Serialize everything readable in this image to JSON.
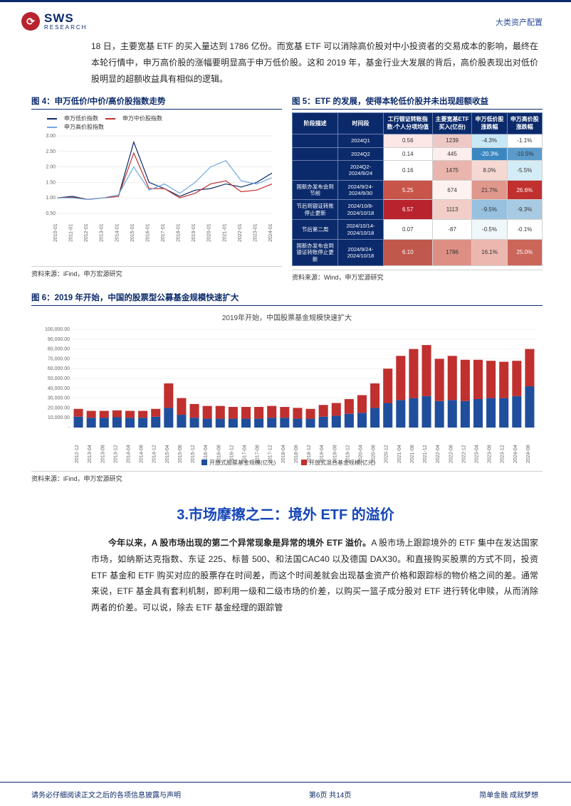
{
  "header": {
    "logo_arc": "⟳",
    "logo_name": "SWS",
    "logo_sub": "RESEARCH",
    "category": "大类资产配置"
  },
  "intro": "18 日，主要宽基 ETF 的买入量达到 1786 亿份。而宽基 ETF 可以消除高价股对中小投资者的交易成本的影响，最终在本轮行情中，申万高价股的涨幅要明显高于申万低价股。这和 2019 年，基金行业大发展的背后，高价股表现出对低价股明显的超额收益具有相似的逻辑。",
  "fig4": {
    "title": "图 4：申万低价/中价/高价股指数走势",
    "type": "line",
    "legend": [
      "申万低价指数",
      "申万中价股指数",
      "申万高价股指数"
    ],
    "colors": [
      "#0b2a6b",
      "#c0302e",
      "#6fa8e0"
    ],
    "x_labels": [
      "2010-01",
      "2011-01",
      "2012-01",
      "2013-01",
      "2014-01",
      "2015-01",
      "2016-01",
      "2017-01",
      "2018-01",
      "2019-01",
      "2020-01",
      "2021-01",
      "2022-01",
      "2023-01",
      "2024-01"
    ],
    "ylim": [
      0.5,
      3.0
    ],
    "yticks": [
      0.5,
      1.0,
      1.5,
      2.0,
      2.5,
      3.0
    ],
    "series": {
      "low": [
        1.0,
        1.05,
        0.95,
        1.0,
        1.05,
        2.8,
        1.5,
        1.3,
        1.05,
        1.25,
        1.3,
        1.45,
        1.35,
        1.5,
        1.8
      ],
      "mid": [
        1.0,
        1.02,
        0.95,
        1.0,
        1.05,
        2.45,
        1.3,
        1.3,
        1.0,
        1.15,
        1.45,
        1.55,
        1.2,
        1.25,
        1.45
      ],
      "high": [
        1.0,
        1.0,
        0.95,
        1.0,
        1.1,
        2.0,
        1.25,
        1.45,
        1.15,
        1.5,
        2.0,
        2.2,
        1.55,
        1.45,
        1.65
      ]
    },
    "source": "资料来源：iFind，申万宏源研究"
  },
  "fig5": {
    "title": "图 5：ETF 的发展，使得本轮低价股并未出现超额收益",
    "type": "table",
    "headers": [
      "阶段描述",
      "时间段",
      "工行银证转账指数-个人分项均值",
      "主要宽基ETF买入(亿份)",
      "申万低价股涨跌幅",
      "申万高价股涨跌幅"
    ],
    "rows": [
      {
        "label": "",
        "period": "2024Q1",
        "v1": "0.56",
        "v2": "1239",
        "v3": "-4.3%",
        "v4": "-1.1%",
        "c1": "#fde6e6",
        "c2": "#eec8c5",
        "c3": "#c9e8f6",
        "c4": "#ffffff"
      },
      {
        "label": "",
        "period": "2024Q2",
        "v1": "0.14",
        "v2": "445",
        "v3": "-20.3%",
        "v4": "-10.5%",
        "c1": "#ffffff",
        "c2": "#fbeeec",
        "c3": "#3b87c1",
        "c4": "#5a9bcb"
      },
      {
        "label": "",
        "period": "2024Q2-2024/9/24",
        "v1": "0.16",
        "v2": "1475",
        "v3": "8.0%",
        "v4": "-5.5%",
        "c1": "#ffffff",
        "c2": "#e9b5ad",
        "c3": "#f6d8d2",
        "c4": "#d4ecf6"
      },
      {
        "label": "国新办发布会到节前",
        "period": "2024/9/24-2024/9/30",
        "v1": "5.25",
        "v2": "674",
        "v3": "21.7%",
        "v4": "26.6%",
        "c1": "#c8554a",
        "c2": "#fdf2ef",
        "c3": "#e0988d",
        "c4": "#c0302e"
      },
      {
        "label": "节后到银证转账停止更新",
        "period": "2024/10/8-2024/10/18",
        "v1": "6.57",
        "v2": "1113",
        "v3": "-9.5%",
        "v4": "-9.3%",
        "c1": "#b8232e",
        "c2": "#f1cec7",
        "c3": "#97c1df",
        "c4": "#a8cbe3"
      },
      {
        "label": "节后第二周",
        "period": "2024/10/14-2024/10/18",
        "v1": "0.07",
        "v2": "-87",
        "v3": "-0.5%",
        "v4": "-0.1%",
        "c1": "#ffffff",
        "c2": "#ffffff",
        "c3": "#eff7fb",
        "c4": "#ffffff"
      },
      {
        "label": "国新办发布会到银证转账停止更新",
        "period": "2024/9/24-2024/10/18",
        "v1": "6.10",
        "v2": "1786",
        "v3": "16.1%",
        "v4": "25.0%",
        "c1": "#c0584e",
        "c2": "#de8f84",
        "c3": "#ecb7ae",
        "c4": "#cb665a"
      }
    ],
    "header_bg": "#0b2a6b",
    "source": "资料来源：Wind，申万宏源研究"
  },
  "fig6": {
    "title": "图 6：2019 年开始，中国的股票型公募基金规模快速扩大",
    "subtitle": "2019年开始，中国股票基金规模快速扩大",
    "type": "stacked-bar",
    "legend": [
      "开放式股票基金规模(亿元)",
      "开放式混合基金规模(亿元)"
    ],
    "colors": [
      "#1f4e9c",
      "#c0302e"
    ],
    "ylim": [
      0,
      100000
    ],
    "yticks": [
      0,
      10000,
      20000,
      30000,
      40000,
      50000,
      60000,
      70000,
      80000,
      90000,
      100000
    ],
    "ytick_labels": [
      "-",
      "10,000.00",
      "20,000.00",
      "30,000.00",
      "40,000.00",
      "50,000.00",
      "60,000.00",
      "70,000.00",
      "80,000.00",
      "90,000.00",
      "100,000.00"
    ],
    "x_labels": [
      "2012-12",
      "2013-04",
      "2013-08",
      "2013-12",
      "2014-04",
      "2014-08",
      "2014-12",
      "2015-04",
      "2015-08",
      "2015-12",
      "2016-04",
      "2016-08",
      "2016-12",
      "2017-04",
      "2017-08",
      "2017-12",
      "2018-04",
      "2018-08",
      "2018-12",
      "2019-04",
      "2019-08",
      "2019-12",
      "2020-04",
      "2020-08",
      "2020-12",
      "2021-04",
      "2021-08",
      "2021-12",
      "2022-04",
      "2022-08",
      "2022-12",
      "2023-04",
      "2023-08",
      "2023-12",
      "2024-04",
      "2024-08"
    ],
    "stock": [
      11000,
      10000,
      10000,
      10500,
      10000,
      10000,
      11000,
      20000,
      13000,
      10000,
      9000,
      9000,
      9000,
      9000,
      9000,
      10000,
      10000,
      9000,
      9000,
      11000,
      12000,
      14000,
      15000,
      20000,
      25000,
      28000,
      30000,
      32000,
      27000,
      28000,
      27000,
      29000,
      30000,
      30000,
      32000,
      42000
    ],
    "hybrid": [
      8000,
      7000,
      7000,
      7000,
      7000,
      7000,
      8000,
      25000,
      17000,
      14000,
      13000,
      13000,
      12000,
      12000,
      12000,
      12000,
      11000,
      11000,
      10000,
      12000,
      13000,
      15000,
      18000,
      25000,
      35000,
      45000,
      50000,
      52000,
      43000,
      45000,
      42000,
      40000,
      38000,
      37000,
      36000,
      38000
    ],
    "source": "资料来源：iFind，申万宏源研究"
  },
  "section3": {
    "heading": "3.市场摩擦之二：境外 ETF 的溢价",
    "para_lead": "今年以来，A 股市场出现的第二个异常现象是异常的境外 ETF 溢价。",
    "para_rest": "A 股市场上跟踪境外的 ETF 集中在发达国家市场，如纳斯达克指数、东证 225、标普 500、和法国CAC40 以及德国 DAX30。和直接购买股票的方式不同，投资 ETF 基金和 ETF 购买对应的股票存在时间差，而这个时间差就会出现基金资产价格和跟踪标的物价格之间的差。通常来说，ETF 基金具有套利机制，即利用一级和二级市场的价差，以购买一篮子成分股对 ETF 进行转化申赎，从而消除两者的价差。可以说，除去 ETF 基金经理的跟踪管"
  },
  "footer": {
    "left": "请务必仔细阅读正文之后的各项信息披露与声明",
    "center": "第6页 共14页",
    "right": "简单金融 成就梦想"
  }
}
